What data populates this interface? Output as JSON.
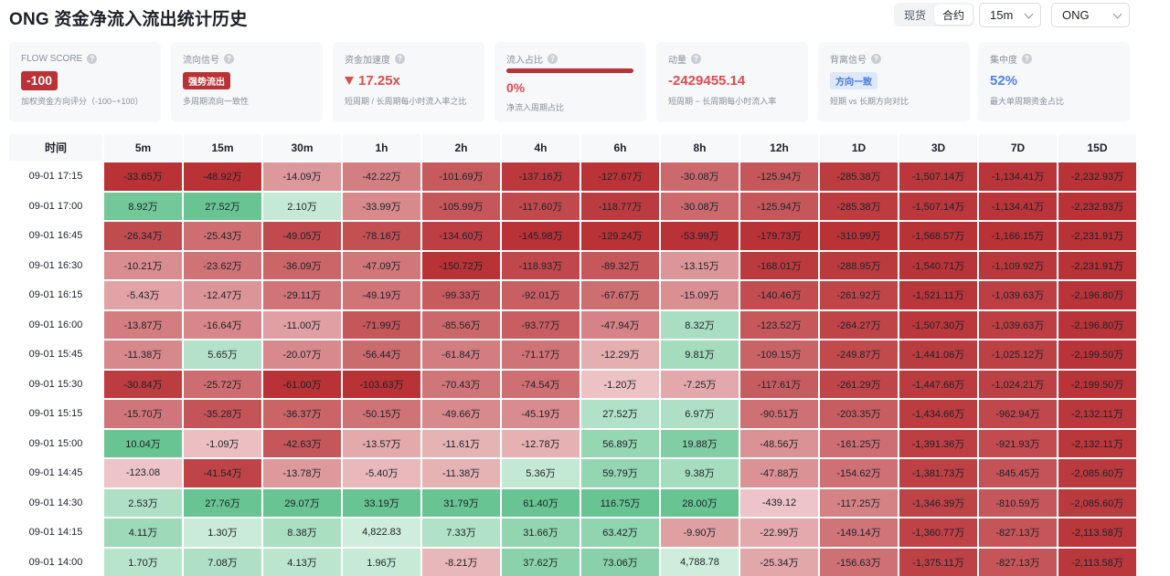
{
  "header": {
    "title": "ONG 资金净流入流出统计历史",
    "market_toggle": [
      "现货",
      "合约"
    ],
    "market_active": 1,
    "interval": "15m",
    "symbol": "ONG"
  },
  "cards": [
    {
      "label": "FLOW SCORE",
      "value": "-100",
      "desc": "加权资金方向评分（-100~+100）"
    },
    {
      "label": "流向信号",
      "value": "强势流出",
      "desc": "多周期流向一致性"
    },
    {
      "label": "资金加速度",
      "value": "17.25x",
      "desc": "短周期 / 长周期每小时流入率之比"
    },
    {
      "label": "流入占比",
      "value": "0%",
      "desc": "净流入周期占比",
      "inflow_fraction": 0
    },
    {
      "label": "动量",
      "value": "-2429455.14",
      "desc": "短周期 − 长周期每小时流入率"
    },
    {
      "label": "背离信号",
      "value": "方向一致",
      "desc": "短期 vs 长期方向对比"
    },
    {
      "label": "集中度",
      "value": "52%",
      "desc": "最大单周期资金占比"
    }
  ],
  "colors": {
    "negative_strong": "#b83236",
    "positive_strong": "#3fb37f",
    "accent_blue": "#4e82e6",
    "negative_text": "#e04a4c"
  },
  "table": {
    "columns": [
      "时间",
      "5m",
      "15m",
      "30m",
      "1h",
      "2h",
      "4h",
      "6h",
      "8h",
      "12h",
      "1D",
      "3D",
      "7D",
      "15D"
    ],
    "rows": [
      {
        "time": "09-01 17:15",
        "cells": [
          "-33.65万",
          "-48.92万",
          "-14.09万",
          "-42.22万",
          "-101.69万",
          "-137.16万",
          "-127.67万",
          "-30.08万",
          "-125.94万",
          "-285.38万",
          "-1,507.14万",
          "-1,134.41万",
          "-2,232.93万"
        ]
      },
      {
        "time": "09-01 17:00",
        "cells": [
          "8.92万",
          "27.52万",
          "2.10万",
          "-33.99万",
          "-105.99万",
          "-117.60万",
          "-118.77万",
          "-30.08万",
          "-125.94万",
          "-285.38万",
          "-1,507.14万",
          "-1,134.41万",
          "-2,232.93万"
        ]
      },
      {
        "time": "09-01 16:45",
        "cells": [
          "-26.34万",
          "-25.43万",
          "-49.05万",
          "-78.16万",
          "-134.60万",
          "-145.98万",
          "-129.24万",
          "-53.99万",
          "-179.73万",
          "-310.99万",
          "-1,568.57万",
          "-1,166.15万",
          "-2,231.91万"
        ]
      },
      {
        "time": "09-01 16:30",
        "cells": [
          "-10.21万",
          "-23.62万",
          "-36.09万",
          "-47.09万",
          "-150.72万",
          "-118.93万",
          "-89.32万",
          "-13.15万",
          "-168.01万",
          "-288.95万",
          "-1,540.71万",
          "-1,109.92万",
          "-2,231.91万"
        ]
      },
      {
        "time": "09-01 16:15",
        "cells": [
          "-5.43万",
          "-12.47万",
          "-29.11万",
          "-49.19万",
          "-99.33万",
          "-92.01万",
          "-67.67万",
          "-15.09万",
          "-140.46万",
          "-261.92万",
          "-1,521.11万",
          "-1,039.63万",
          "-2,196.80万"
        ]
      },
      {
        "time": "09-01 16:00",
        "cells": [
          "-13.87万",
          "-16.64万",
          "-11.00万",
          "-71.99万",
          "-85.56万",
          "-93.77万",
          "-47.94万",
          "8.32万",
          "-123.52万",
          "-264.27万",
          "-1,507.30万",
          "-1,039.63万",
          "-2,196.80万"
        ]
      },
      {
        "time": "09-01 15:45",
        "cells": [
          "-11.38万",
          "5.65万",
          "-20.07万",
          "-56.44万",
          "-61.84万",
          "-71.17万",
          "-12.29万",
          "9.81万",
          "-109.15万",
          "-249.87万",
          "-1,441.06万",
          "-1,025.12万",
          "-2,199.50万"
        ]
      },
      {
        "time": "09-01 15:30",
        "cells": [
          "-30.84万",
          "-25.72万",
          "-61.00万",
          "-103.63万",
          "-70.43万",
          "-74.54万",
          "-1.20万",
          "-7.25万",
          "-117.61万",
          "-261.29万",
          "-1,447.66万",
          "-1,024.21万",
          "-2,199.50万"
        ]
      },
      {
        "time": "09-01 15:15",
        "cells": [
          "-15.70万",
          "-35.28万",
          "-36.37万",
          "-50.15万",
          "-49.66万",
          "-45.19万",
          "27.52万",
          "6.97万",
          "-90.51万",
          "-203.35万",
          "-1,434.66万",
          "-962.94万",
          "-2,132.11万"
        ]
      },
      {
        "time": "09-01 15:00",
        "cells": [
          "10.04万",
          "-1.09万",
          "-42.63万",
          "-13.57万",
          "-11.61万",
          "-12.78万",
          "56.89万",
          "19.88万",
          "-48.56万",
          "-161.25万",
          "-1,391.36万",
          "-921.93万",
          "-2,132.11万"
        ]
      },
      {
        "time": "09-01 14:45",
        "cells": [
          "-123.08",
          "-41.54万",
          "-13.78万",
          "-5.40万",
          "-11.38万",
          "5.36万",
          "59.79万",
          "9.38万",
          "-47.88万",
          "-154.62万",
          "-1,381.73万",
          "-845.45万",
          "-2,085.60万"
        ]
      },
      {
        "time": "09-01 14:30",
        "cells": [
          "2.53万",
          "27.76万",
          "29.07万",
          "33.19万",
          "31.79万",
          "61.40万",
          "116.75万",
          "28.00万",
          "-439.12",
          "-117.25万",
          "-1,346.39万",
          "-810.59万",
          "-2,085.60万"
        ]
      },
      {
        "time": "09-01 14:15",
        "cells": [
          "4.11万",
          "1.30万",
          "8.38万",
          "4,822.83",
          "7.33万",
          "31.66万",
          "63.42万",
          "-9.90万",
          "-22.99万",
          "-149.14万",
          "-1,360.77万",
          "-827.13万",
          "-2,113.58万"
        ]
      },
      {
        "time": "09-01 14:00",
        "cells": [
          "1.70万",
          "7.08万",
          "4.13万",
          "1.96万",
          "-8.21万",
          "37.62万",
          "73.06万",
          "4,788.78",
          "-25.34万",
          "-156.63万",
          "-1,375.11万",
          "-827.13万",
          "-2,113.58万"
        ]
      }
    ]
  }
}
